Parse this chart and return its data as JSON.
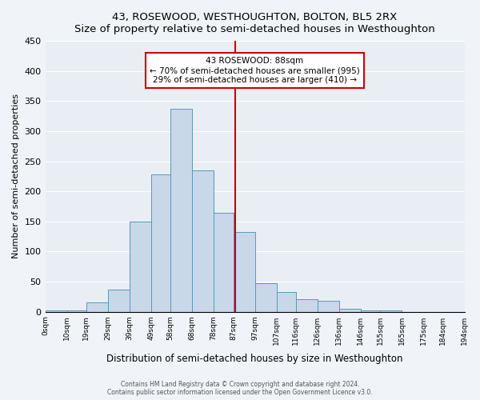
{
  "title": "43, ROSEWOOD, WESTHOUGHTON, BOLTON, BL5 2RX",
  "subtitle": "Size of property relative to semi-detached houses in Westhoughton",
  "xlabel": "Distribution of semi-detached houses by size in Westhoughton",
  "ylabel": "Number of semi-detached properties",
  "bin_labels": [
    "0sqm",
    "10sqm",
    "19sqm",
    "29sqm",
    "39sqm",
    "49sqm",
    "58sqm",
    "68sqm",
    "78sqm",
    "87sqm",
    "97sqm",
    "107sqm",
    "116sqm",
    "126sqm",
    "136sqm",
    "146sqm",
    "155sqm",
    "165sqm",
    "175sqm",
    "184sqm",
    "194sqm"
  ],
  "bar_heights": [
    2,
    2,
    15,
    37,
    150,
    228,
    337,
    235,
    165,
    132,
    48,
    33,
    21,
    18,
    5,
    2,
    2,
    0,
    0
  ],
  "bar_left_edges": [
    0,
    10,
    19,
    29,
    39,
    49,
    58,
    68,
    78,
    87,
    97,
    107,
    116,
    126,
    136,
    146,
    155,
    165,
    175
  ],
  "bar_widths": [
    10,
    9,
    10,
    10,
    10,
    9,
    10,
    10,
    9,
    10,
    10,
    9,
    10,
    10,
    10,
    9,
    10,
    10,
    9
  ],
  "bar_color": "#c8d8e8",
  "bar_edge_color": "#5599bb",
  "property_value": 88,
  "vline_color": "#cc0000",
  "annotation_title": "43 ROSEWOOD: 88sqm",
  "annotation_line1": "← 70% of semi-detached houses are smaller (995)",
  "annotation_line2": "29% of semi-detached houses are larger (410) →",
  "annotation_box_color": "#ffffff",
  "annotation_box_edge": "#cc0000",
  "ylim": [
    0,
    450
  ],
  "yticks": [
    0,
    50,
    100,
    150,
    200,
    250,
    300,
    350,
    400,
    450
  ],
  "bg_color": "#e8eef4",
  "fig_bg_color": "#f0f4f8",
  "footer1": "Contains HM Land Registry data © Crown copyright and database right 2024.",
  "footer2": "Contains public sector information licensed under the Open Government Licence v3.0."
}
